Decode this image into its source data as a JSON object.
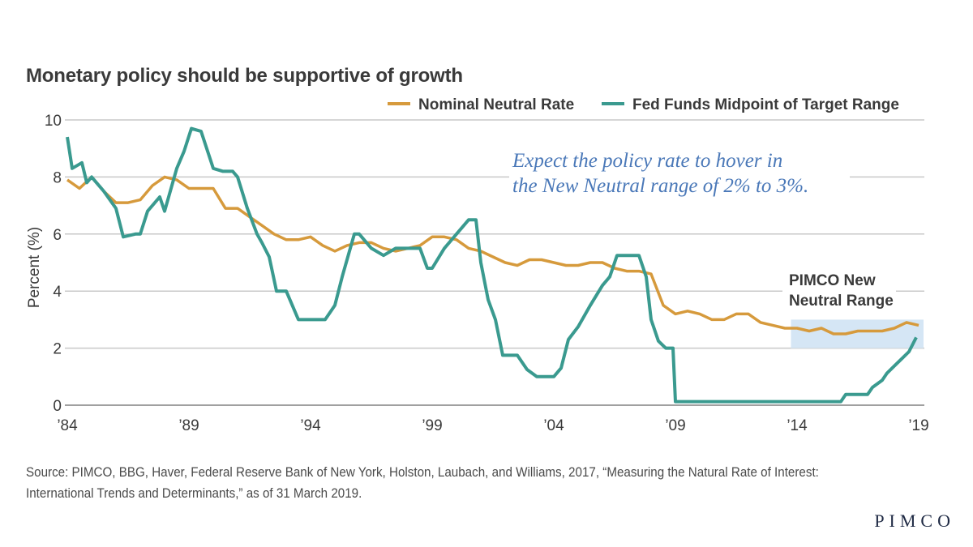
{
  "title": "Monetary policy should be supportive of growth",
  "source": "Source: PIMCO, BBG, Haver, Federal Reserve Bank of New York, Holston, Laubach, and Williams, 2017, “Measuring the Natural Rate of Interest: International Trends and Determinants,” as of 31 March 2019.",
  "logo": "PIMCO",
  "chart_data": {
    "type": "line",
    "title": "Monetary policy should be supportive of growth",
    "xlabel": "",
    "ylabel": "Percent (%)",
    "ylim": [
      0,
      10
    ],
    "xlim": [
      1984,
      2019
    ],
    "yticks": [
      0,
      2,
      4,
      6,
      8,
      10
    ],
    "xticks": [
      1984,
      1989,
      1994,
      1999,
      2004,
      2009,
      2014,
      2019
    ],
    "xtick_labels": [
      "’84",
      "’89",
      "’94",
      "’99",
      "’04",
      "’09",
      "’14",
      "’19"
    ],
    "grid": true,
    "legend_position": "top-right",
    "annotation": [
      "Expect the policy rate to hover in",
      "the New Neutral range of 2% to 3%."
    ],
    "shaded_range": {
      "label": [
        "PIMCO New",
        "Neutral Range"
      ],
      "x": [
        2013.75,
        2019.2
      ],
      "y": [
        2,
        3
      ],
      "color": "#d5e6f5"
    },
    "series": [
      {
        "name": "Nominal Neutral Rate",
        "color": "#d69a3c",
        "x": [
          1984.0,
          1984.5,
          1985.0,
          1985.5,
          1986.0,
          1986.5,
          1987.0,
          1987.5,
          1988.0,
          1988.5,
          1989.0,
          1989.5,
          1990.0,
          1990.5,
          1991.0,
          1991.5,
          1992.0,
          1992.5,
          1993.0,
          1993.5,
          1994.0,
          1994.5,
          1995.0,
          1995.5,
          1996.0,
          1996.5,
          1997.0,
          1997.5,
          1998.0,
          1998.5,
          1999.0,
          1999.5,
          2000.0,
          2000.5,
          2001.0,
          2001.5,
          2002.0,
          2002.5,
          2003.0,
          2003.5,
          2004.0,
          2004.5,
          2005.0,
          2005.5,
          2006.0,
          2006.5,
          2007.0,
          2007.5,
          2008.0,
          2008.5,
          2009.0,
          2009.5,
          2010.0,
          2010.5,
          2011.0,
          2011.5,
          2012.0,
          2012.5,
          2013.0,
          2013.5,
          2014.0,
          2014.5,
          2015.0,
          2015.5,
          2016.0,
          2016.5,
          2017.0,
          2017.5,
          2018.0,
          2018.5,
          2019.0
        ],
        "values": [
          7.9,
          7.6,
          8.0,
          7.5,
          7.1,
          7.1,
          7.2,
          7.7,
          8.0,
          7.9,
          7.6,
          7.6,
          7.6,
          6.9,
          6.9,
          6.6,
          6.3,
          6.0,
          5.8,
          5.8,
          5.9,
          5.6,
          5.4,
          5.6,
          5.7,
          5.7,
          5.5,
          5.4,
          5.5,
          5.6,
          5.9,
          5.9,
          5.8,
          5.5,
          5.4,
          5.2,
          5.0,
          4.9,
          5.1,
          5.1,
          5.0,
          4.9,
          4.9,
          5.0,
          5.0,
          4.8,
          4.7,
          4.7,
          4.6,
          3.5,
          3.2,
          3.3,
          3.2,
          3.0,
          3.0,
          3.2,
          3.2,
          2.9,
          2.8,
          2.7,
          2.7,
          2.6,
          2.7,
          2.5,
          2.5,
          2.6,
          2.6,
          2.6,
          2.7,
          2.9,
          2.8
        ]
      },
      {
        "name": "Fed Funds Midpoint of Target Range",
        "color": "#3a9a8f",
        "x": [
          1984.0,
          1984.2,
          1984.6,
          1984.8,
          1985.0,
          1985.5,
          1986.0,
          1986.3,
          1986.8,
          1987.0,
          1987.3,
          1987.8,
          1988.0,
          1988.5,
          1988.8,
          1989.1,
          1989.5,
          1990.0,
          1990.4,
          1990.8,
          1991.0,
          1991.4,
          1991.8,
          1992.0,
          1992.3,
          1992.6,
          1993.0,
          1993.5,
          1994.0,
          1994.3,
          1994.6,
          1995.0,
          1995.3,
          1995.8,
          1996.0,
          1996.5,
          1997.0,
          1997.5,
          1998.0,
          1998.5,
          1998.8,
          1999.0,
          1999.5,
          2000.0,
          2000.5,
          2000.8,
          2001.0,
          2001.3,
          2001.6,
          2001.9,
          2002.5,
          2002.9,
          2003.3,
          2003.7,
          2004.0,
          2004.3,
          2004.6,
          2005.0,
          2005.5,
          2006.0,
          2006.3,
          2006.6,
          2007.0,
          2007.5,
          2007.8,
          2008.0,
          2008.3,
          2008.6,
          2008.9,
          2009.0,
          2010.0,
          2011.0,
          2012.0,
          2013.0,
          2014.0,
          2015.0,
          2015.8,
          2016.0,
          2016.5,
          2016.9,
          2017.1,
          2017.5,
          2017.7,
          2018.0,
          2018.3,
          2018.6,
          2018.9
        ],
        "values": [
          9.4,
          8.3,
          8.5,
          7.8,
          8.0,
          7.5,
          6.9,
          5.9,
          6.0,
          6.0,
          6.8,
          7.3,
          6.8,
          8.3,
          8.9,
          9.7,
          9.6,
          8.3,
          8.2,
          8.2,
          8.0,
          6.9,
          6.0,
          5.7,
          5.2,
          4.0,
          4.0,
          3.0,
          3.0,
          3.0,
          3.0,
          3.5,
          4.5,
          6.0,
          6.0,
          5.5,
          5.25,
          5.5,
          5.5,
          5.5,
          4.8,
          4.8,
          5.5,
          6.0,
          6.5,
          6.5,
          5.0,
          3.7,
          3.0,
          1.75,
          1.75,
          1.25,
          1.0,
          1.0,
          1.0,
          1.3,
          2.3,
          2.75,
          3.5,
          4.2,
          4.5,
          5.25,
          5.25,
          5.25,
          4.5,
          3.0,
          2.25,
          2.0,
          2.0,
          0.125,
          0.125,
          0.125,
          0.125,
          0.125,
          0.125,
          0.125,
          0.125,
          0.375,
          0.375,
          0.375,
          0.625,
          0.875,
          1.125,
          1.375,
          1.625,
          1.875,
          2.375
        ]
      }
    ]
  }
}
